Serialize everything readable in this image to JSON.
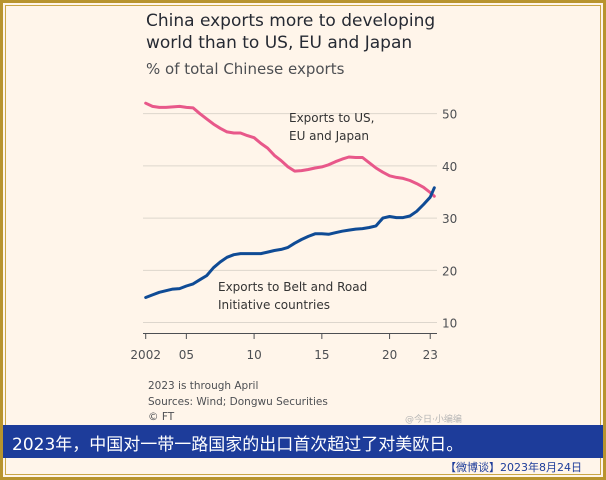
{
  "chart_data": {
    "type": "line",
    "title": "China exports more to developing world than to US, EU and Japan",
    "subtitle": "% of total Chinese exports",
    "x_ticks": [
      2002,
      2005,
      2010,
      2015,
      2020,
      2023
    ],
    "x_tick_labels": [
      "2002",
      "05",
      "10",
      "15",
      "20",
      "23"
    ],
    "y_ticks": [
      10,
      20,
      30,
      40,
      50
    ],
    "xlim": [
      2001.8,
      2023.5
    ],
    "ylim": [
      8,
      53
    ],
    "y_axis_side": "right",
    "grid": "horizontal",
    "legend": "inline labels",
    "series": [
      {
        "name": "Exports to US, EU and Japan",
        "label_lines": [
          "Exports to US,",
          "EU and Japan"
        ],
        "color": "#e8588a",
        "x": [
          2002.0,
          2002.5,
          2003.0,
          2003.5,
          2004.0,
          2004.5,
          2005.0,
          2005.5,
          2006.0,
          2006.5,
          2007.0,
          2007.5,
          2008.0,
          2008.5,
          2009.0,
          2009.5,
          2010.0,
          2010.5,
          2011.0,
          2011.5,
          2012.0,
          2012.5,
          2013.0,
          2013.5,
          2014.0,
          2014.5,
          2015.0,
          2015.5,
          2016.0,
          2016.5,
          2017.0,
          2017.5,
          2018.0,
          2018.5,
          2019.0,
          2019.5,
          2020.0,
          2020.5,
          2021.0,
          2021.5,
          2022.0,
          2022.5,
          2023.0,
          2023.3
        ],
        "y": [
          52.0,
          51.4,
          51.2,
          51.2,
          51.3,
          51.4,
          51.2,
          51.1,
          50.0,
          49.0,
          48.0,
          47.2,
          46.5,
          46.3,
          46.3,
          45.8,
          45.4,
          44.3,
          43.4,
          42.0,
          41.0,
          39.8,
          39.0,
          39.1,
          39.3,
          39.6,
          39.8,
          40.2,
          40.8,
          41.3,
          41.7,
          41.6,
          41.6,
          40.6,
          39.6,
          38.8,
          38.1,
          37.8,
          37.6,
          37.2,
          36.6,
          35.9,
          34.9,
          34.2
        ]
      },
      {
        "name": "Exports to Belt and Road Initiative countries",
        "label_lines": [
          "Exports to Belt and Road",
          "Initiative countries"
        ],
        "color": "#0f4b95",
        "x": [
          2002.0,
          2002.5,
          2003.0,
          2003.5,
          2004.0,
          2004.5,
          2005.0,
          2005.5,
          2006.0,
          2006.5,
          2007.0,
          2007.5,
          2008.0,
          2008.5,
          2009.0,
          2009.5,
          2010.0,
          2010.5,
          2011.0,
          2011.5,
          2012.0,
          2012.5,
          2013.0,
          2013.5,
          2014.0,
          2014.5,
          2015.0,
          2015.5,
          2016.0,
          2016.5,
          2017.0,
          2017.5,
          2018.0,
          2018.5,
          2019.0,
          2019.5,
          2020.0,
          2020.5,
          2021.0,
          2021.5,
          2022.0,
          2022.5,
          2023.0,
          2023.3
        ],
        "y": [
          14.8,
          15.3,
          15.8,
          16.1,
          16.4,
          16.5,
          17.0,
          17.4,
          18.2,
          19.0,
          20.5,
          21.6,
          22.5,
          23.0,
          23.2,
          23.2,
          23.2,
          23.2,
          23.5,
          23.8,
          24.0,
          24.4,
          25.2,
          25.9,
          26.5,
          27.0,
          27.0,
          26.9,
          27.2,
          27.5,
          27.7,
          27.9,
          28.0,
          28.2,
          28.5,
          30.0,
          30.3,
          30.1,
          30.1,
          30.4,
          31.3,
          32.6,
          34.0,
          35.8
        ]
      }
    ]
  },
  "notes": {
    "line1": "2023 is through April",
    "line2": "Sources: Wind; Dongwu Securities",
    "line3": "© FT"
  },
  "watermark": "@今日·小编编",
  "caption": "2023年，中国对一带一路国家的出口首次超过了对美欧日。",
  "footer": "【微博谈】2023年8月24日",
  "colors": {
    "frame_border": "#b8942e",
    "background": "#fff5ea",
    "caption_bar": "#1d3c9a",
    "footer_text": "#1d3c9a"
  }
}
